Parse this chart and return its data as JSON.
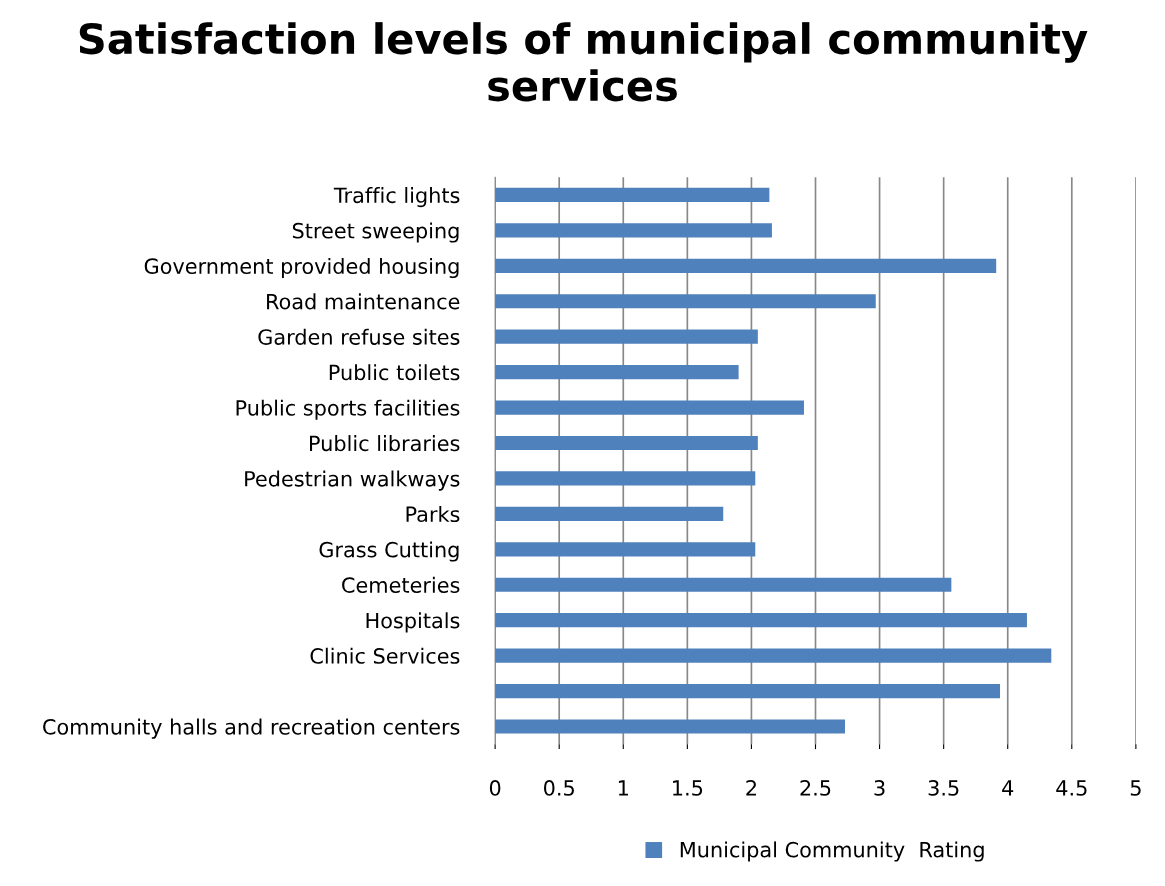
{
  "chart_data": {
    "type": "bar",
    "orientation": "horizontal",
    "title": "Satisfaction levels of municipal community services",
    "categories": [
      "Traffic lights",
      "Street sweeping",
      "Government provided housing",
      "Road maintenance",
      "Garden refuse sites",
      "Public toilets",
      "Public sports facilities",
      "Public libraries",
      "Pedestrian walkways",
      "Parks",
      "Grass Cutting",
      "Cemeteries",
      "Hospitals",
      "Clinic Services",
      null,
      "Community halls and recreation centers"
    ],
    "series": [
      {
        "name": "Municipal Community  Rating",
        "color": "#4f81bd",
        "values": [
          2.14,
          2.16,
          3.91,
          2.97,
          2.05,
          1.9,
          2.41,
          2.05,
          2.03,
          1.78,
          2.03,
          3.56,
          4.15,
          4.34,
          3.94,
          2.73
        ]
      }
    ],
    "xlim": [
      0,
      5
    ],
    "xticks": [
      0,
      0.5,
      1,
      1.5,
      2,
      2.5,
      3,
      3.5,
      4,
      4.5,
      5
    ],
    "grid": "x",
    "legend": "bottom"
  }
}
